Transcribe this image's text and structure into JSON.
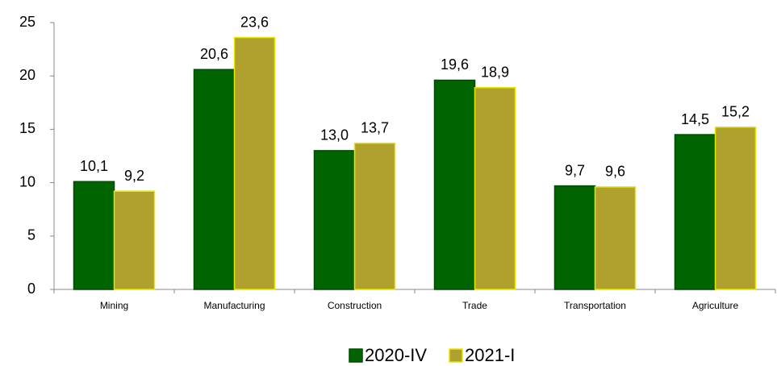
{
  "chart_data": {
    "type": "bar",
    "categories": [
      "Mining",
      "Manufacturing",
      "Construction",
      "Trade",
      "Transportation",
      "Agriculture"
    ],
    "series": [
      {
        "name": "2020-IV",
        "color": "#006400",
        "values": [
          10.1,
          20.6,
          13.0,
          19.6,
          9.7,
          14.5
        ],
        "value_labels": [
          "10,1",
          "20,6",
          "13,0",
          "19,6",
          "9,7",
          "14,5"
        ]
      },
      {
        "name": "2021-I",
        "color": "#b0a02e",
        "values": [
          9.2,
          23.6,
          13.7,
          18.9,
          9.6,
          15.2
        ],
        "value_labels": [
          "9,2",
          "23,6",
          "13,7",
          "18,9",
          "9,6",
          "15,2"
        ]
      }
    ],
    "ylim": [
      0,
      25
    ],
    "yticks": [
      0,
      5,
      10,
      15,
      20,
      25
    ],
    "grid": false,
    "legend": "bottom"
  }
}
